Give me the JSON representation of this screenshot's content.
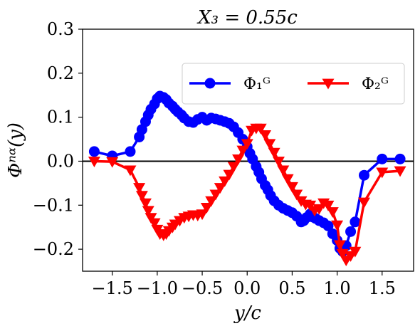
{
  "chart_data": {
    "type": "line",
    "title": "X₃ = 0.55c",
    "xlabel": "y/c",
    "ylabel": "Φⁿᵅ(y)",
    "xlim": [
      -1.83,
      1.85
    ],
    "ylim": [
      -0.25,
      0.3
    ],
    "xticks": [
      -1.5,
      -1.0,
      -0.5,
      0.0,
      0.5,
      1.0,
      1.5
    ],
    "xtick_labels": [
      "−1.5",
      "−1.0",
      "−0.5",
      "0.0",
      "0.5",
      "1.0",
      "1.5"
    ],
    "yticks": [
      -0.2,
      -0.1,
      0.0,
      0.1,
      0.2,
      0.3
    ],
    "ytick_labels": [
      "−0.2",
      "−0.1",
      "0.0",
      "0.1",
      "0.2",
      "0.3"
    ],
    "reference_line": 0,
    "grid": false,
    "legend": {
      "placement": "top-right",
      "columns": 2
    },
    "series": [
      {
        "name": "Φ₁ᴳ",
        "color": "#0000ff",
        "marker": "circle",
        "x": [
          -1.7,
          -1.5,
          -1.3,
          -1.2,
          -1.17,
          -1.13,
          -1.1,
          -1.07,
          -1.03,
          -1.0,
          -0.97,
          -0.93,
          -0.9,
          -0.87,
          -0.83,
          -0.8,
          -0.77,
          -0.73,
          -0.7,
          -0.65,
          -0.6,
          -0.55,
          -0.5,
          -0.45,
          -0.4,
          -0.35,
          -0.3,
          -0.25,
          -0.2,
          -0.15,
          -0.1,
          -0.05,
          0.0,
          0.03,
          0.06,
          0.1,
          0.13,
          0.16,
          0.2,
          0.23,
          0.26,
          0.3,
          0.35,
          0.4,
          0.45,
          0.5,
          0.55,
          0.6,
          0.63,
          0.66,
          0.7,
          0.73,
          0.76,
          0.8,
          0.85,
          0.9,
          0.95,
          1.0,
          1.03,
          1.06,
          1.1,
          1.15,
          1.2,
          1.3,
          1.5,
          1.7
        ],
        "y": [
          0.022,
          0.012,
          0.022,
          0.055,
          0.072,
          0.09,
          0.105,
          0.118,
          0.13,
          0.142,
          0.148,
          0.145,
          0.14,
          0.132,
          0.125,
          0.118,
          0.112,
          0.105,
          0.098,
          0.09,
          0.088,
          0.095,
          0.1,
          0.093,
          0.098,
          0.096,
          0.093,
          0.09,
          0.086,
          0.078,
          0.065,
          0.05,
          0.033,
          0.018,
          0.005,
          -0.012,
          -0.025,
          -0.04,
          -0.055,
          -0.065,
          -0.078,
          -0.09,
          -0.1,
          -0.107,
          -0.112,
          -0.117,
          -0.125,
          -0.138,
          -0.135,
          -0.128,
          -0.12,
          -0.127,
          -0.13,
          -0.135,
          -0.14,
          -0.147,
          -0.165,
          -0.18,
          -0.198,
          -0.205,
          -0.192,
          -0.16,
          -0.138,
          -0.032,
          0.005,
          0.005
        ]
      },
      {
        "name": "Φ₂ᴳ",
        "color": "#ff0000",
        "marker": "triangle-down",
        "x": [
          -1.7,
          -1.5,
          -1.3,
          -1.2,
          -1.17,
          -1.13,
          -1.1,
          -1.07,
          -1.03,
          -1.0,
          -0.97,
          -0.93,
          -0.9,
          -0.87,
          -0.83,
          -0.8,
          -0.75,
          -0.7,
          -0.65,
          -0.6,
          -0.55,
          -0.5,
          -0.45,
          -0.4,
          -0.35,
          -0.3,
          -0.25,
          -0.2,
          -0.15,
          -0.1,
          -0.05,
          0.0,
          0.05,
          0.1,
          0.15,
          0.2,
          0.25,
          0.3,
          0.35,
          0.4,
          0.45,
          0.5,
          0.55,
          0.6,
          0.65,
          0.7,
          0.75,
          0.8,
          0.85,
          0.9,
          0.95,
          1.0,
          1.03,
          1.06,
          1.1,
          1.15,
          1.2,
          1.3,
          1.5,
          1.7
        ],
        "y": [
          0.0,
          -0.001,
          -0.02,
          -0.06,
          -0.078,
          -0.095,
          -0.112,
          -0.128,
          -0.14,
          -0.155,
          -0.165,
          -0.168,
          -0.165,
          -0.158,
          -0.15,
          -0.143,
          -0.135,
          -0.128,
          -0.125,
          -0.122,
          -0.123,
          -0.12,
          -0.105,
          -0.09,
          -0.075,
          -0.06,
          -0.045,
          -0.03,
          -0.012,
          0.005,
          0.025,
          0.04,
          0.07,
          0.075,
          0.075,
          0.06,
          0.04,
          0.02,
          0.0,
          -0.02,
          -0.04,
          -0.058,
          -0.075,
          -0.09,
          -0.098,
          -0.1,
          -0.112,
          -0.108,
          -0.095,
          -0.1,
          -0.115,
          -0.145,
          -0.19,
          -0.21,
          -0.225,
          -0.215,
          -0.205,
          -0.093,
          -0.025,
          -0.022
        ]
      }
    ]
  }
}
